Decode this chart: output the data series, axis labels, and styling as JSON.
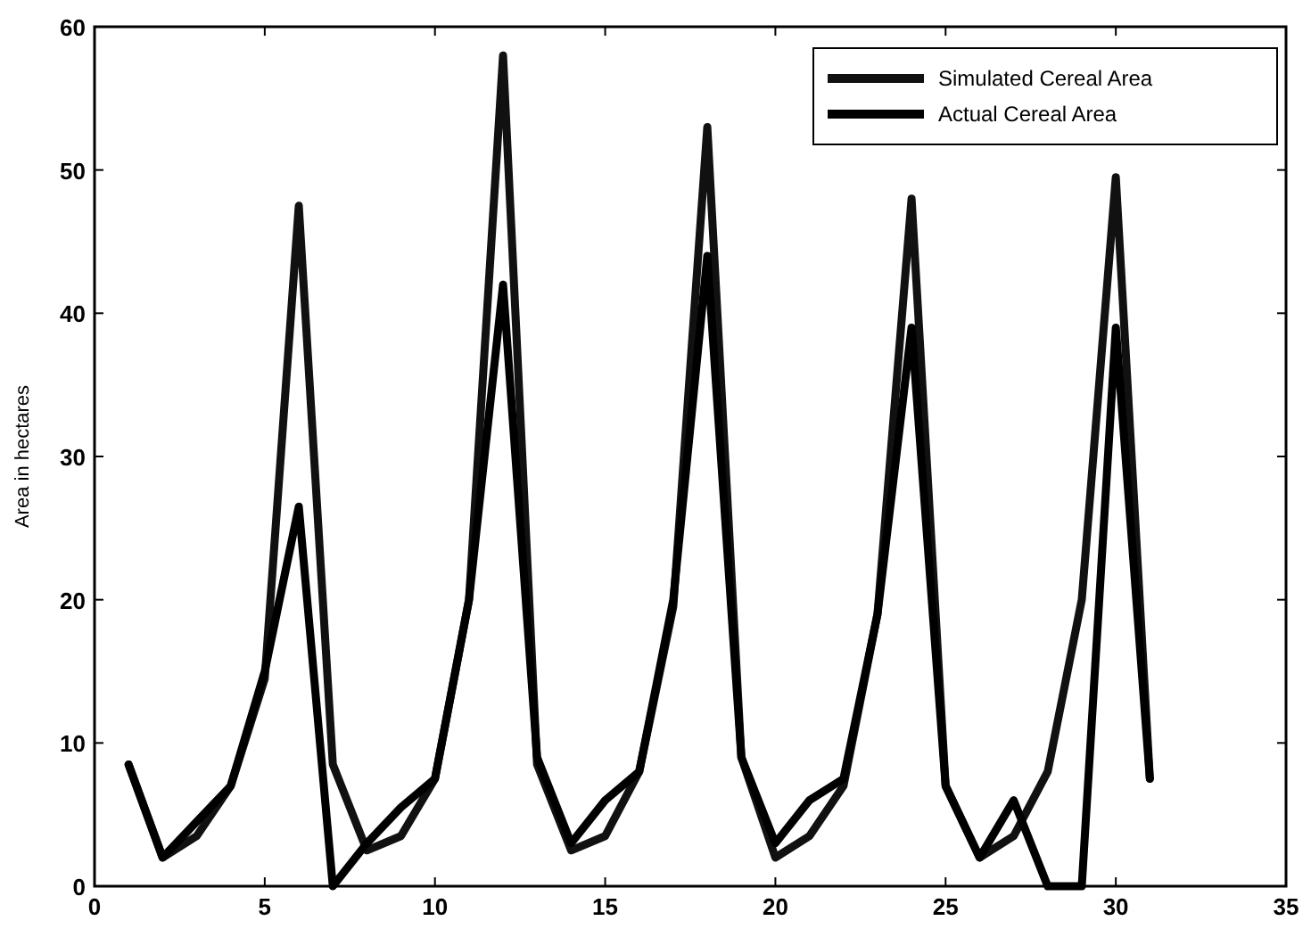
{
  "chart_data": {
    "type": "line",
    "ylabel": "Area in hectares",
    "x": [
      1,
      2,
      3,
      4,
      5,
      6,
      7,
      8,
      9,
      10,
      11,
      12,
      13,
      14,
      15,
      16,
      17,
      18,
      19,
      20,
      21,
      22,
      23,
      24,
      25,
      26,
      27,
      28,
      29,
      30,
      31
    ],
    "series": [
      {
        "name": "Simulated Cereal Area",
        "color": "#111111",
        "values": [
          8.5,
          2,
          3.5,
          7,
          14.5,
          47.5,
          8.5,
          2.5,
          3.5,
          7.5,
          20,
          58,
          8.5,
          2.5,
          3.5,
          8,
          19.5,
          53,
          9,
          2,
          3.5,
          7,
          19,
          48,
          7,
          2,
          3.5,
          8,
          20,
          49.5,
          7.5
        ]
      },
      {
        "name": "Actual Cereal Area",
        "color": "#000000",
        "values": [
          8.5,
          2,
          4.5,
          7,
          15,
          26.5,
          0,
          3,
          5.5,
          7.5,
          20,
          42,
          9,
          3,
          6,
          8,
          20,
          44,
          9,
          3,
          6,
          7.5,
          19,
          39,
          7,
          2,
          6,
          0,
          0,
          39,
          7.5
        ]
      }
    ],
    "xlim": [
      0,
      35
    ],
    "xticks": [
      0,
      5,
      10,
      15,
      20,
      25,
      30,
      35
    ],
    "ylim": [
      0,
      60
    ],
    "yticks": [
      0,
      10,
      20,
      30,
      40,
      50,
      60
    ],
    "grid": false,
    "legend": "top right",
    "marker": "none",
    "line_style": "solid"
  }
}
